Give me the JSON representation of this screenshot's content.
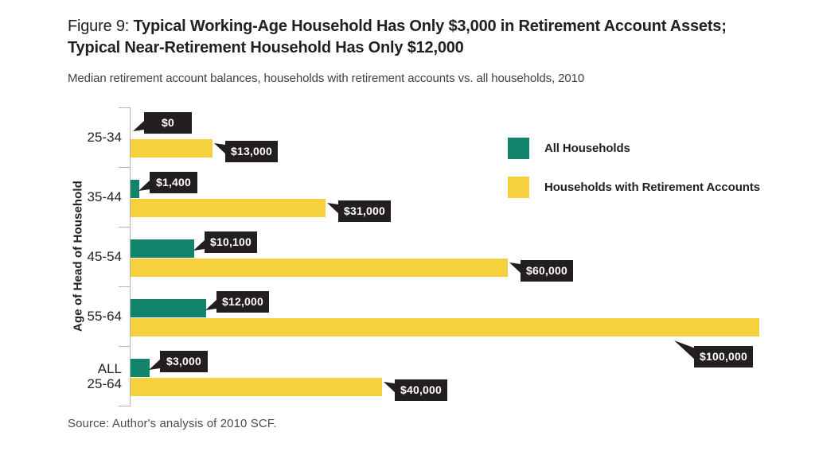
{
  "title": {
    "prefix": "Figure 9: ",
    "bold_line1": "Typical Working-Age Household Has Only $3,000 in Retirement Account Assets;",
    "bold_line2": "Typical Near-Retirement Household Has Only $12,000"
  },
  "subtitle": "Median retirement account balances, households with retirement accounts vs. all households, 2010",
  "source": "Source:  Author's analysis of 2010 SCF.",
  "colors": {
    "all_households": "#12846B",
    "retirement_accounts": "#F5D03F",
    "callout_bg": "#231F20",
    "callout_text": "#FFFFFF",
    "axis": "#B4B4B4"
  },
  "chart_data": {
    "type": "bar",
    "orientation": "horizontal",
    "title": "Median retirement account balances, households with retirement accounts vs. all households, 2010",
    "xlabel": "",
    "ylabel": "Age of Head of Household",
    "xlim": [
      0,
      100000
    ],
    "grid": false,
    "legend_position": "top-right",
    "categories": [
      "25-34",
      "35-44",
      "45-54",
      "55-64",
      "ALL\n25-64"
    ],
    "series": [
      {
        "name": "All Households",
        "color": "#12846B",
        "values": [
          0,
          1400,
          10100,
          12000,
          3000
        ],
        "data_labels": [
          "$0",
          "$1,400",
          "$10,100",
          "$12,000",
          "$3,000"
        ]
      },
      {
        "name": "Households with Retirement Accounts",
        "color": "#F5D03F",
        "values": [
          13000,
          31000,
          60000,
          100000,
          40000
        ],
        "data_labels": [
          "$13,000",
          "$31,000",
          "$60,000",
          "$100,000",
          "$40,000"
        ]
      }
    ]
  }
}
